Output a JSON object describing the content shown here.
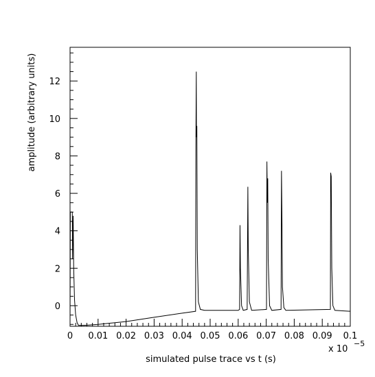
{
  "chart_data": {
    "type": "line",
    "xlabel": "simulated pulse trace vs t (s)",
    "ylabel": "amplitude (arbitrary units)",
    "x_multiplier": "x 10",
    "x_multiplier_exponent": "−5",
    "xlim": [
      0,
      0.1
    ],
    "ylim": [
      -1.1,
      13.8
    ],
    "grid": false,
    "legend": "none",
    "line_color": "#000000",
    "x_ticks": [
      0,
      0.01,
      0.02,
      0.03,
      0.04,
      0.05,
      0.06,
      0.07,
      0.08,
      0.09,
      0.1
    ],
    "x_tick_labels": [
      "0",
      "0.01",
      "0.02",
      "0.03",
      "0.04",
      "0.05",
      "0.06",
      "0.07",
      "0.08",
      "0.09",
      "0.1"
    ],
    "y_ticks": [
      0,
      2,
      4,
      6,
      8,
      10,
      12
    ],
    "y_tick_labels": [
      "0",
      "2",
      "4",
      "6",
      "8",
      "10",
      "12"
    ],
    "series": [
      {
        "points": [
          [
            0.0,
            -0.9
          ],
          [
            0.0001,
            5.0
          ],
          [
            0.0008,
            5.0
          ],
          [
            0.0009,
            2.5
          ],
          [
            0.0011,
            4.8
          ],
          [
            0.0013,
            2.0
          ],
          [
            0.0016,
            0.3
          ],
          [
            0.002,
            -0.5
          ],
          [
            0.0025,
            -0.9
          ],
          [
            0.003,
            -1.05
          ],
          [
            0.005,
            -1.05
          ],
          [
            0.01,
            -1.0
          ],
          [
            0.02,
            -0.85
          ],
          [
            0.03,
            -0.62
          ],
          [
            0.04,
            -0.4
          ],
          [
            0.0448,
            -0.3
          ],
          [
            0.0449,
            8.5
          ],
          [
            0.04505,
            12.5
          ],
          [
            0.0451,
            9.0
          ],
          [
            0.04525,
            9.6
          ],
          [
            0.0454,
            3.0
          ],
          [
            0.0458,
            0.2
          ],
          [
            0.0465,
            -0.2
          ],
          [
            0.048,
            -0.25
          ],
          [
            0.06,
            -0.25
          ],
          [
            0.0605,
            -0.2
          ],
          [
            0.06065,
            4.3
          ],
          [
            0.0608,
            2.0
          ],
          [
            0.0612,
            0.0
          ],
          [
            0.0618,
            -0.25
          ],
          [
            0.0632,
            -0.2
          ],
          [
            0.06345,
            6.35
          ],
          [
            0.0636,
            3.0
          ],
          [
            0.064,
            0.2
          ],
          [
            0.0648,
            -0.25
          ],
          [
            0.0701,
            -0.2
          ],
          [
            0.07025,
            7.7
          ],
          [
            0.0704,
            5.5
          ],
          [
            0.07055,
            6.8
          ],
          [
            0.0707,
            2.5
          ],
          [
            0.0712,
            0.0
          ],
          [
            0.072,
            -0.25
          ],
          [
            0.0753,
            -0.2
          ],
          [
            0.07545,
            7.2
          ],
          [
            0.0756,
            5.0
          ],
          [
            0.0758,
            1.0
          ],
          [
            0.0763,
            -0.1
          ],
          [
            0.077,
            -0.25
          ],
          [
            0.0929,
            -0.2
          ],
          [
            0.093,
            7.1
          ],
          [
            0.0932,
            6.9
          ],
          [
            0.0934,
            2.0
          ],
          [
            0.0938,
            0.0
          ],
          [
            0.0945,
            -0.25
          ],
          [
            0.1,
            -0.3
          ]
        ]
      }
    ]
  }
}
